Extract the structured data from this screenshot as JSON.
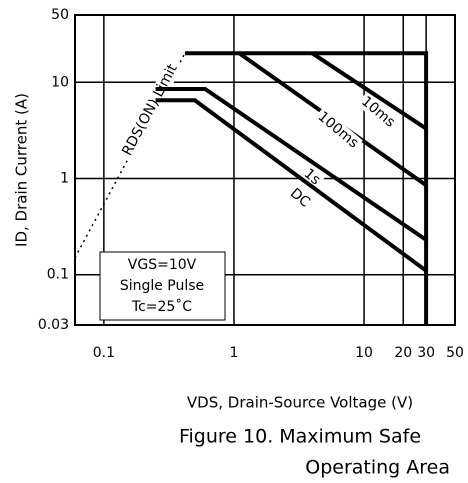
{
  "chart_data": {
    "type": "line",
    "title": [
      "Figure 10. Maximum Safe",
      "Operating Area"
    ],
    "xlabel": "VDS, Drain-Source Voltage (V)",
    "ylabel": "ID, Drain Current (A)",
    "xscale": "log",
    "yscale": "log",
    "grid": true,
    "color": "#000000",
    "xlim": [
      0.06,
      50
    ],
    "ylim": [
      0.03,
      50
    ],
    "xticks": [
      0.1,
      1,
      10,
      20,
      30,
      50
    ],
    "yticks": [
      0.03,
      0.1,
      1,
      10,
      50
    ],
    "series": [
      {
        "x": [
          0.42,
          30,
          30
        ],
        "values": [
          20,
          20,
          0.03
        ]
      },
      {
        "name": "RDS(ON) Limit",
        "style": "dotted",
        "x": [
          0.06,
          0.42
        ],
        "values": [
          0.15,
          20
        ]
      },
      {
        "name": "10ms",
        "x": [
          4,
          30
        ],
        "values": [
          20,
          3.3
        ]
      },
      {
        "name": "100ms",
        "x": [
          1.1,
          30
        ],
        "values": [
          20,
          0.85
        ]
      },
      {
        "name": "1s",
        "x": [
          0.25,
          0.6,
          30
        ],
        "values": [
          8.5,
          8.5,
          0.23
        ]
      },
      {
        "name": "DC",
        "x": [
          0.25,
          0.5,
          30
        ],
        "values": [
          6.5,
          6.5,
          0.11
        ]
      }
    ],
    "annotations": [
      "VGS=10V",
      "Single Pulse",
      "Tc=25˚C"
    ]
  }
}
